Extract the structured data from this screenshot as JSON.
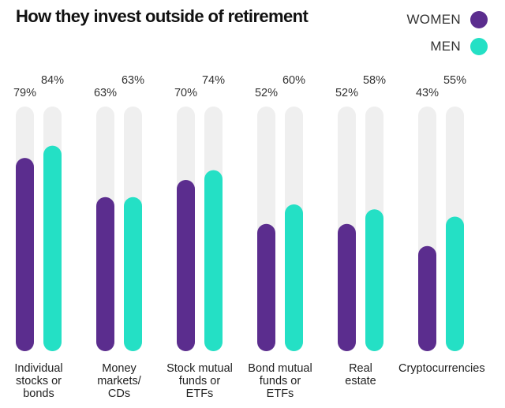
{
  "title": "How they invest outside of retirement",
  "legend": [
    {
      "label": "WOMEN",
      "color": "#5b2d8e"
    },
    {
      "label": "MEN",
      "color": "#24e0c5"
    }
  ],
  "colors": {
    "women": "#5b2d8e",
    "men": "#24e0c5",
    "track": "#efefef"
  },
  "chart_data": {
    "type": "bar",
    "title": "How they invest outside of retirement",
    "categories": [
      "Individual stocks or bonds",
      "Money markets/ CDs",
      "Stock mutual funds or ETFs",
      "Bond mutual funds or ETFs",
      "Real estate",
      "Cryptocurrencies"
    ],
    "category_lines": [
      [
        "Individual",
        "stocks or",
        "bonds"
      ],
      [
        "Money",
        "markets/",
        "CDs"
      ],
      [
        "Stock mutual",
        "funds or",
        "ETFs"
      ],
      [
        "Bond mutual",
        "funds or",
        "ETFs"
      ],
      [
        "Real",
        "estate"
      ],
      [
        "Cryptocurrencies"
      ]
    ],
    "series": [
      {
        "name": "WOMEN",
        "values": [
          79,
          63,
          70,
          52,
          52,
          43
        ],
        "labels": [
          "79%",
          "63%",
          "70%",
          "52%",
          "52%",
          "43%"
        ]
      },
      {
        "name": "MEN",
        "values": [
          84,
          63,
          74,
          60,
          58,
          55
        ],
        "labels": [
          "84%",
          "63%",
          "74%",
          "60%",
          "58%",
          "55%"
        ]
      }
    ],
    "ylim": [
      0,
      100
    ],
    "xlabel": "",
    "ylabel": "",
    "grid": false,
    "legend_position": "top-right"
  }
}
